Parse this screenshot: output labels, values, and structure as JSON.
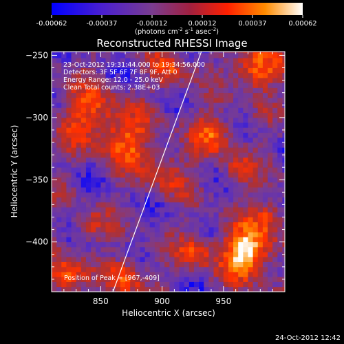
{
  "colorbar": {
    "ticks": [
      "-0.00062",
      "-0.00037",
      "-0.00012",
      "0.00012",
      "0.00037",
      "0.00062"
    ],
    "units_main": "(photons cm",
    "units_exp1": "-2",
    "units_mid": " s",
    "units_exp2": "-1",
    "units_mid2": " asec",
    "units_exp3": "-2",
    "units_end": ")"
  },
  "info": {
    "time": "23-Oct-2012 19:31:44.000 to 19:34:56.000",
    "detectors": "Detectors: 3F 5F 6F 7F 8F 9F, Att 0",
    "energy": "Energy Range: 12.0 - 25.0 keV",
    "clean": "Clean     Total counts: 2.38E+03",
    "peak": "Position of Peak = [967,-409]"
  },
  "footer": {
    "timestamp": "24-Oct-2012 12:42"
  },
  "chart_data": {
    "type": "heatmap",
    "title": "Reconstructed RHESSI Image",
    "xlabel": "Heliocentric X (arcsec)",
    "ylabel": "Heliocentric Y (arcsec)",
    "xlim": [
      810,
      1000
    ],
    "ylim": [
      -440,
      -247
    ],
    "xticks": [
      850,
      900,
      950
    ],
    "yticks": [
      -250,
      -300,
      -350,
      -400
    ],
    "colorscale_range": [
      -0.00062,
      0.00062
    ],
    "colormap": [
      "#0000ff",
      "#5a2fbf",
      "#7a3c90",
      "#b03030",
      "#ff3000",
      "#ff9000",
      "#ffffff"
    ],
    "limb_line": [
      [
        860,
        -440
      ],
      [
        932,
        -247
      ]
    ],
    "peak_position": [
      967,
      -409
    ],
    "hotspots": [
      {
        "x": 967,
        "y": -410,
        "amp": 1.0,
        "r": 14
      },
      {
        "x": 975,
        "y": -262,
        "amp": 0.75,
        "r": 12
      },
      {
        "x": 820,
        "y": -430,
        "amp": 0.7,
        "r": 10
      },
      {
        "x": 840,
        "y": -300,
        "amp": 0.55,
        "r": 16
      },
      {
        "x": 870,
        "y": -320,
        "amp": 0.55,
        "r": 14
      },
      {
        "x": 940,
        "y": -315,
        "amp": 0.5,
        "r": 12
      },
      {
        "x": 870,
        "y": -430,
        "amp": 0.6,
        "r": 10
      },
      {
        "x": 985,
        "y": -380,
        "amp": 0.45,
        "r": 10
      },
      {
        "x": 900,
        "y": -345,
        "amp": 0.45,
        "r": 12
      },
      {
        "x": 840,
        "y": -390,
        "amp": 0.4,
        "r": 9
      },
      {
        "x": 905,
        "y": -265,
        "amp": 0.45,
        "r": 10
      },
      {
        "x": 925,
        "y": -410,
        "amp": 0.5,
        "r": 10
      },
      {
        "x": 960,
        "y": -345,
        "amp": 0.4,
        "r": 9
      }
    ]
  }
}
